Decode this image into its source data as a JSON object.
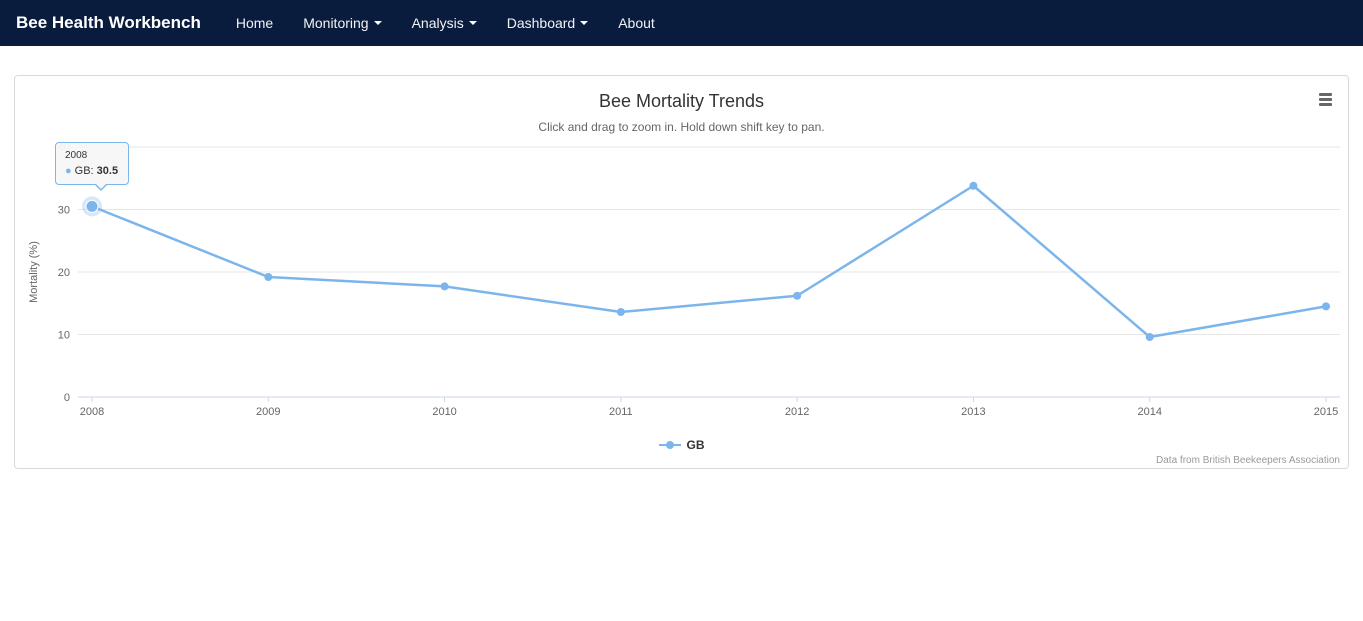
{
  "navbar": {
    "brand": "Bee Health Workbench",
    "items": [
      {
        "label": "Home",
        "dropdown": false
      },
      {
        "label": "Monitoring",
        "dropdown": true
      },
      {
        "label": "Analysis",
        "dropdown": true
      },
      {
        "label": "Dashboard",
        "dropdown": true
      },
      {
        "label": "About",
        "dropdown": false
      }
    ]
  },
  "colors": {
    "navbar_bg": "#0a1c3e",
    "series_gb": "#7cb5ec",
    "gridline": "#e6e6e6",
    "axis_line": "#ccd6eb"
  },
  "tooltip": {
    "header": "2008",
    "series_label": "GB: ",
    "value": "30.5"
  },
  "legend": {
    "label": "GB"
  },
  "credits": "Data from British Beekeepers Association",
  "chart_data": {
    "type": "line",
    "title": "Bee Mortality Trends",
    "subtitle": "Click and drag to zoom in. Hold down shift key to pan.",
    "xlabel": "",
    "ylabel": "Mortality (%)",
    "categories": [
      "2008",
      "2009",
      "2010",
      "2011",
      "2012",
      "2013",
      "2014",
      "2015"
    ],
    "series": [
      {
        "name": "GB",
        "color": "#7cb5ec",
        "values": [
          30.5,
          19.2,
          17.7,
          13.6,
          16.2,
          33.8,
          9.6,
          14.5
        ]
      }
    ],
    "ylim": [
      0,
      40
    ],
    "yticks": [
      0,
      10,
      20,
      30,
      40
    ],
    "grid": true,
    "legend_position": "bottom",
    "hover": {
      "series": 0,
      "index": 0
    }
  }
}
